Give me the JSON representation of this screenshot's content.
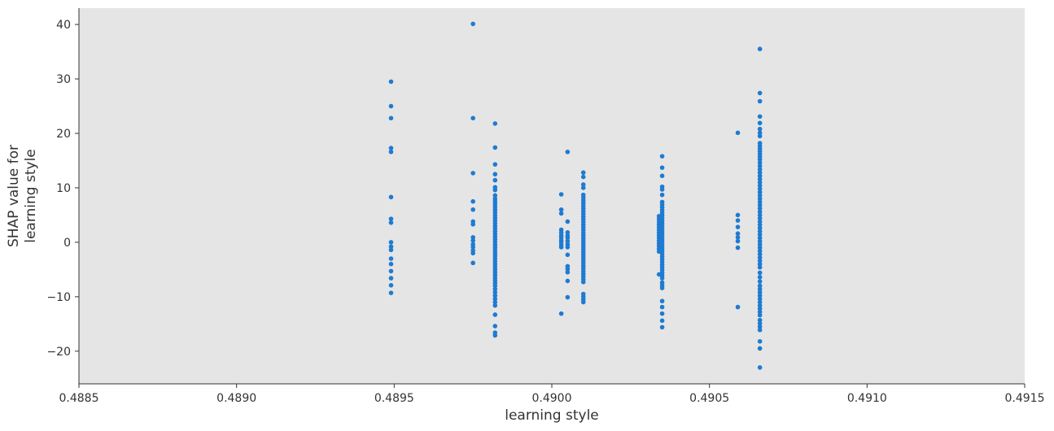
{
  "chart_data": {
    "type": "scatter",
    "xlabel": "learning style",
    "ylabel": [
      "SHAP value for",
      "learning style"
    ],
    "xlim": [
      0.4885,
      0.4915
    ],
    "ylim": [
      -26,
      43
    ],
    "xticks": [
      0.4885,
      0.489,
      0.4895,
      0.49,
      0.4905,
      0.491,
      0.4915
    ],
    "xtick_labels": [
      "0.4885",
      "0.4890",
      "0.4895",
      "0.4900",
      "0.4905",
      "0.4910",
      "0.4915"
    ],
    "yticks": [
      -20,
      -10,
      0,
      10,
      20,
      30,
      40
    ],
    "ytick_labels": [
      "−20",
      "−10",
      "0",
      "10",
      "20",
      "30",
      "40"
    ],
    "grid": false,
    "background": "#e5e5e5",
    "point_color": "#1e7bd1",
    "columns": [
      {
        "x": 0.48949,
        "y": [
          29.5,
          25.0,
          22.8,
          17.3,
          16.6,
          8.3,
          4.3,
          3.6,
          0.0,
          -0.8,
          -1.4,
          -3.0,
          -4.0,
          -5.3,
          -6.6,
          -7.9,
          -9.3
        ]
      },
      {
        "x": 0.48975,
        "y": [
          40.1,
          22.8,
          12.7,
          7.5,
          6.0,
          3.8,
          3.3,
          0.9,
          0.3,
          -0.4,
          -0.9,
          -1.5,
          -2.0,
          -3.8
        ]
      },
      {
        "x": 0.48982,
        "y": [
          21.8,
          17.4,
          14.3,
          12.5,
          11.4,
          10.1,
          9.6,
          8.6,
          8.0,
          7.5,
          7.0,
          6.5,
          6.0,
          5.5,
          5.0,
          4.5,
          4.0,
          3.5,
          3.0,
          2.5,
          2.0,
          1.5,
          1.0,
          0.5,
          0.0,
          -0.5,
          -1.0,
          -1.5,
          -2.0,
          -2.5,
          -3.0,
          -3.5,
          -4.0,
          -4.5,
          -5.0,
          -5.5,
          -6.0,
          -6.5,
          -7.0,
          -7.5,
          -8.0,
          -8.6,
          -9.2,
          -9.8,
          -10.4,
          -11.0,
          -11.6,
          -13.3,
          -15.4,
          -16.6,
          -17.1
        ]
      },
      {
        "x": 0.49003,
        "y": [
          8.8,
          6.0,
          5.3,
          2.3,
          1.8,
          1.3,
          0.9,
          0.4,
          0.0,
          -0.5,
          -0.9,
          -13.1
        ]
      },
      {
        "x": 0.49005,
        "y": [
          16.6,
          3.8,
          1.8,
          1.2,
          0.8,
          0.2,
          -0.4,
          -0.9,
          -2.3,
          -4.4,
          -4.9,
          -5.5,
          -7.1,
          -10.1
        ]
      },
      {
        "x": 0.4901,
        "y": [
          12.8,
          12.0,
          10.6,
          10.0,
          8.7,
          8.2,
          7.7,
          7.2,
          6.7,
          6.2,
          5.7,
          5.2,
          4.7,
          4.2,
          3.7,
          3.2,
          2.7,
          2.2,
          1.7,
          1.2,
          0.7,
          0.2,
          -0.3,
          -0.8,
          -1.3,
          -1.8,
          -2.3,
          -2.8,
          -3.3,
          -3.8,
          -4.3,
          -4.8,
          -5.3,
          -5.8,
          -6.3,
          -6.8,
          -7.3,
          -9.5,
          -10.0,
          -10.5,
          -11.0
        ]
      },
      {
        "x": 0.49034,
        "y": [
          4.8,
          4.3,
          3.8,
          3.3,
          2.8,
          2.3,
          1.8,
          1.3,
          0.8,
          0.3,
          -0.2,
          -0.7,
          -1.2,
          -1.7,
          -5.9
        ]
      },
      {
        "x": 0.49035,
        "y": [
          15.8,
          13.7,
          12.2,
          10.2,
          9.7,
          8.7,
          7.4,
          6.9,
          6.4,
          5.9,
          5.4,
          4.9,
          4.4,
          3.9,
          3.4,
          2.9,
          2.4,
          1.9,
          1.4,
          0.9,
          0.4,
          -0.1,
          -0.6,
          -1.1,
          -1.6,
          -2.1,
          -2.6,
          -3.1,
          -3.6,
          -4.1,
          -4.6,
          -5.1,
          -5.6,
          -6.1,
          -6.6,
          -7.4,
          -7.9,
          -8.4,
          -10.8,
          -11.9,
          -13.1,
          -14.4,
          -15.6
        ]
      },
      {
        "x": 0.49059,
        "y": [
          20.1,
          5.0,
          4.0,
          2.8,
          1.6,
          0.9,
          0.2,
          -1.0,
          -11.9
        ]
      },
      {
        "x": 0.49066,
        "y": [
          35.5,
          27.4,
          25.9,
          23.1,
          21.9,
          20.8,
          20.1,
          19.5,
          18.2,
          17.7,
          17.2,
          16.7,
          16.2,
          15.7,
          15.2,
          14.6,
          14.0,
          13.4,
          12.8,
          12.2,
          11.6,
          11.0,
          10.4,
          9.8,
          9.2,
          8.6,
          8.0,
          7.4,
          6.8,
          6.2,
          5.6,
          5.0,
          4.4,
          3.8,
          3.2,
          2.6,
          2.0,
          1.4,
          0.8,
          0.2,
          -0.4,
          -1.0,
          -1.6,
          -2.2,
          -2.8,
          -3.4,
          -4.0,
          -4.6,
          -5.6,
          -6.4,
          -7.2,
          -8.0,
          -8.6,
          -9.2,
          -9.8,
          -10.4,
          -11.0,
          -11.6,
          -12.2,
          -12.8,
          -13.4,
          -14.3,
          -14.9,
          -15.5,
          -16.1,
          -18.2,
          -19.5,
          -23.0
        ]
      }
    ]
  }
}
